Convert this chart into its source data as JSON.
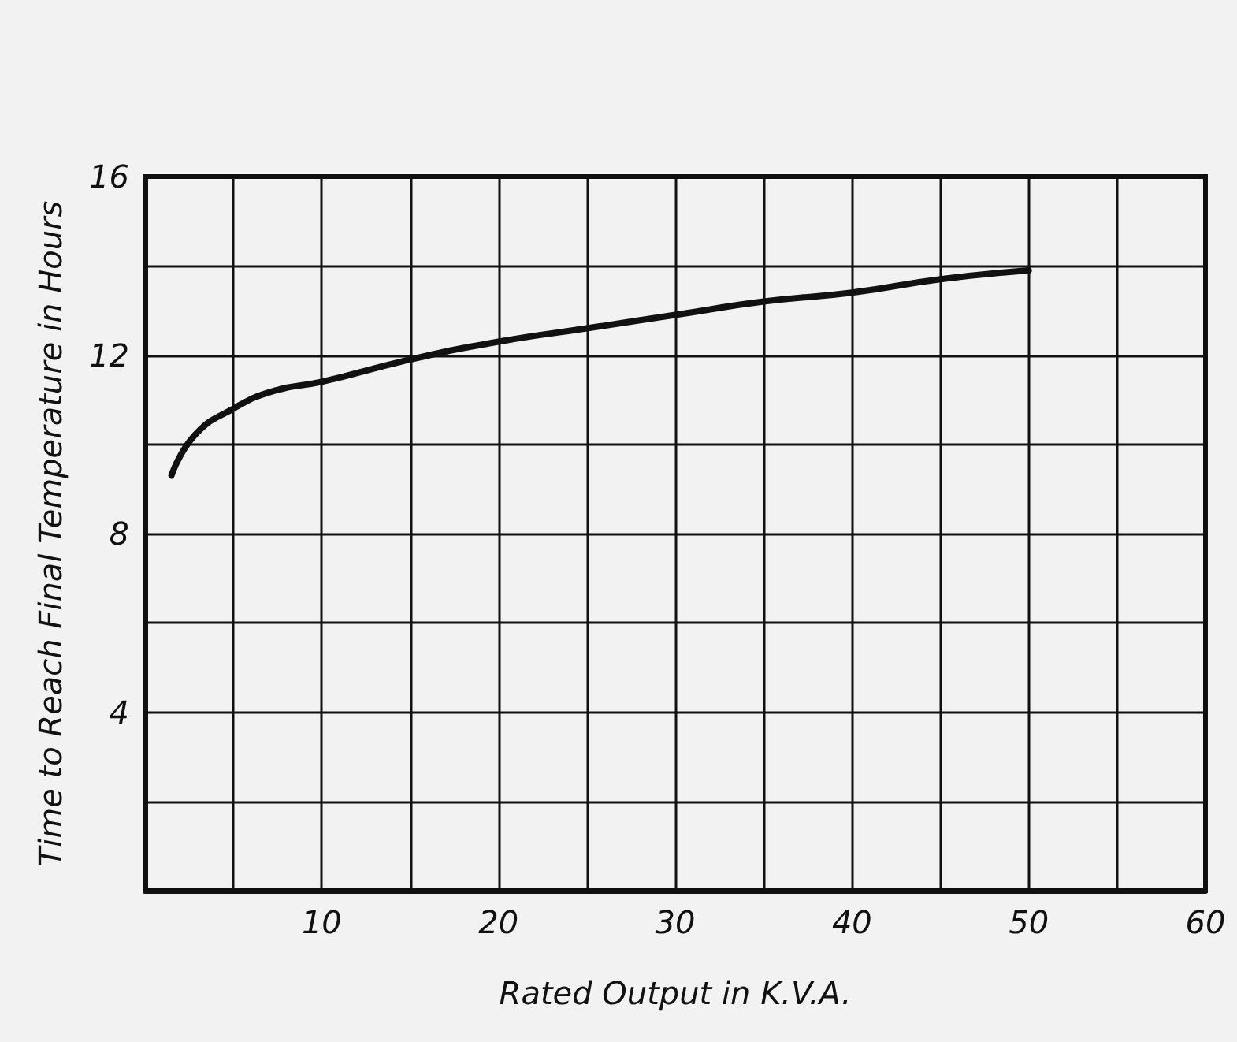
{
  "chart_data": {
    "type": "line",
    "xlabel": "Rated Output in K.V.A.",
    "ylabel": "Time to Reach Final Temperature in Hours",
    "x": [
      1.5,
      2.8,
      5,
      7.3,
      10,
      15,
      20,
      25,
      30,
      35,
      40,
      45,
      50
    ],
    "series": [
      {
        "color": "#111111",
        "values": [
          9.3,
          10.2,
          10.8,
          11.2,
          11.4,
          11.9,
          12.3,
          12.6,
          12.9,
          13.2,
          13.4,
          13.7,
          13.9
        ]
      }
    ],
    "xlim": [
      0,
      60
    ],
    "xticks": [
      {
        "value": 5,
        "label": null
      },
      10,
      {
        "value": 15,
        "label": null
      },
      20,
      {
        "value": 25,
        "label": null
      },
      30,
      {
        "value": 35,
        "label": null
      },
      40,
      {
        "value": 45,
        "label": null
      },
      50,
      {
        "value": 55,
        "label": null
      },
      60
    ],
    "ylim": [
      0,
      16
    ],
    "yticks": [
      {
        "value": 2,
        "label": null
      },
      4,
      {
        "value": 6,
        "label": null
      },
      8,
      {
        "value": 10,
        "label": null
      },
      12,
      {
        "value": 14,
        "label": null
      },
      16
    ],
    "grid": true,
    "marker": "none",
    "line_style": "solid"
  }
}
